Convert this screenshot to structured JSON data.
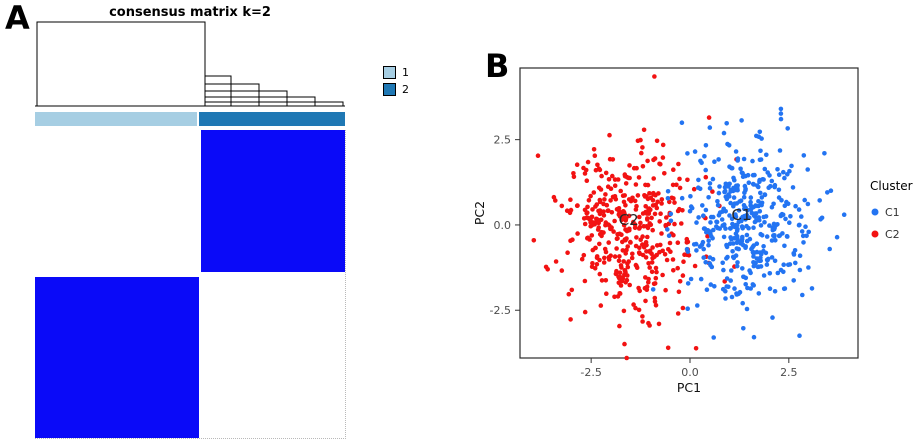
{
  "figure": {
    "panel_a_label": "A",
    "panel_b_label": "B",
    "background": "#ffffff"
  },
  "chart_data": [
    {
      "type": "heatmap",
      "title": "consensus matrix k=2",
      "k": 2,
      "legend": {
        "items": [
          {
            "label": "1",
            "color": "#A6CEE3"
          },
          {
            "label": "2",
            "color": "#1F78B4"
          }
        ]
      },
      "matrix": {
        "high_color": "#0A0AF8",
        "low_color": "#FFFFFF",
        "column_clusters": [
          {
            "name": "1",
            "fraction": 0.53
          },
          {
            "name": "2",
            "fraction": 0.47
          }
        ],
        "blocks": [
          {
            "row_start": 0,
            "row_end": 0.462,
            "col_start": 0.535,
            "col_end": 1,
            "value": 1
          },
          {
            "row_start": 0.478,
            "row_end": 1,
            "col_start": 0,
            "col_end": 0.53,
            "value": 1
          }
        ]
      },
      "has_dendrogram": true
    },
    {
      "type": "scatter",
      "xlabel": "PC1",
      "ylabel": "PC2",
      "xlim": [
        -4.3,
        4.25
      ],
      "ylim": [
        -3.9,
        4.6
      ],
      "xticks": {
        "values": [
          -2.5,
          0,
          2.5
        ],
        "labels": [
          "-2.5",
          "0.0",
          "2.5"
        ]
      },
      "yticks": {
        "values": [
          -2.5,
          0,
          2.5
        ],
        "labels": [
          "-2.5",
          "0.0",
          "2.5"
        ]
      },
      "legend": {
        "title": "Cluster",
        "items": [
          {
            "label": "C1",
            "color": "#2374F2"
          },
          {
            "label": "C2",
            "color": "#F21212"
          }
        ]
      },
      "series": [
        {
          "name": "C2",
          "color": "#F21212",
          "n": 430,
          "center": [
            -1.5,
            -0.2
          ],
          "sd": [
            0.82,
            1.15
          ],
          "seed": 1337,
          "extra_points": [
            [
              -0.9,
              4.35
            ],
            [
              -3.95,
              -0.45
            ],
            [
              -3.6,
              -1.3
            ],
            [
              -0.55,
              -3.6
            ],
            [
              -1.6,
              -3.9
            ]
          ],
          "label": {
            "text": "C2",
            "x": -1.55,
            "y": 0.0
          }
        },
        {
          "name": "C1",
          "color": "#2374F2",
          "n": 430,
          "center": [
            1.45,
            0.0
          ],
          "sd": [
            0.82,
            1.15
          ],
          "seed": 2024,
          "extra_points": [
            [
              3.9,
              0.3
            ],
            [
              3.4,
              2.1
            ],
            [
              0.6,
              -3.3
            ],
            [
              2.3,
              3.4
            ]
          ],
          "label": {
            "text": "C1",
            "x": 1.3,
            "y": 0.15
          }
        }
      ],
      "point_radius": 2.3
    }
  ]
}
